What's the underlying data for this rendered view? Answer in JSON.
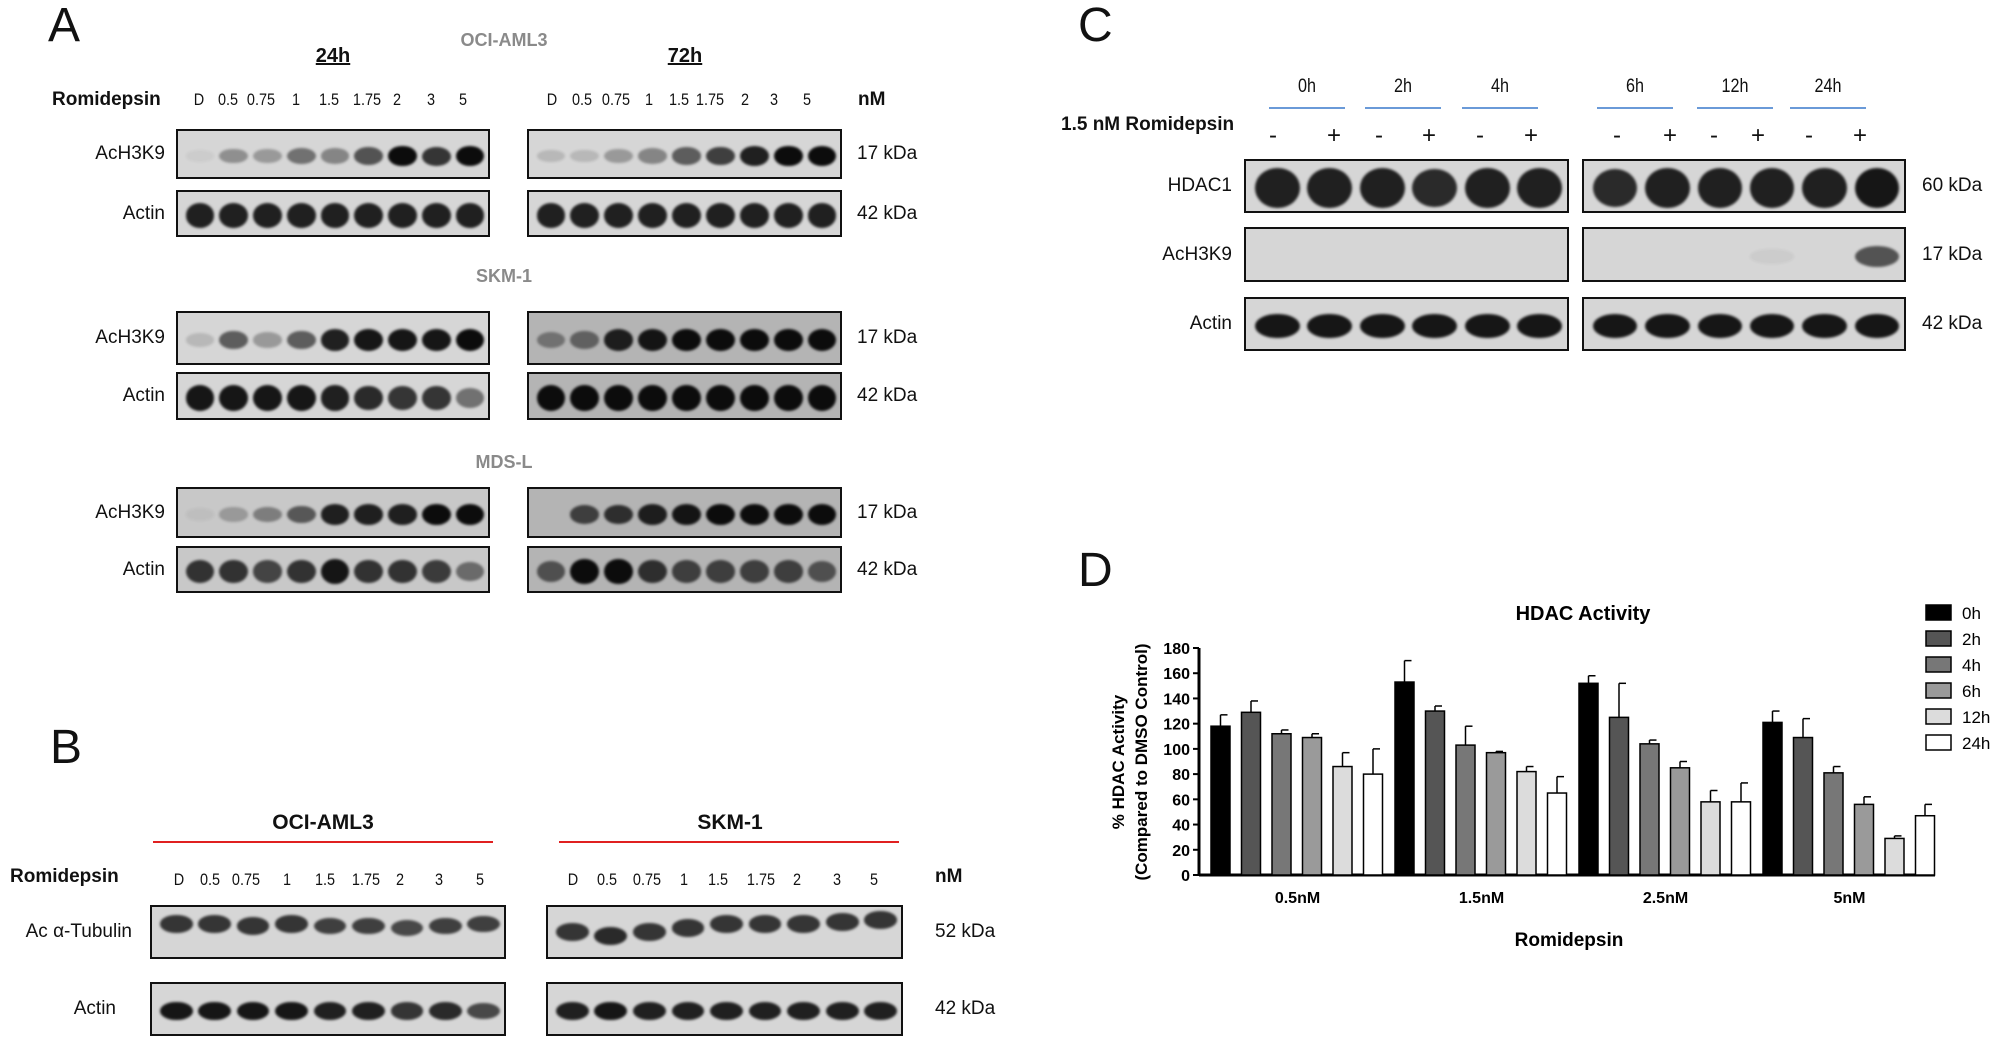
{
  "panel_labels": {
    "a": "A",
    "b": "B",
    "c": "C",
    "d": "D"
  },
  "panel_a": {
    "treatment_label": "Romidepsin",
    "unit": "nM",
    "timepoints": [
      "24h",
      "72h"
    ],
    "doses": [
      "D",
      "0.5",
      "0.75",
      "1",
      "1.5",
      "1.75",
      "2",
      "3",
      "5"
    ],
    "blots": [
      {
        "cell_line": "OCI-AML3",
        "rows": [
          {
            "label": "AcH3K9",
            "mw": "17 kDa",
            "intensity": [
              [
                0.05,
                0.35,
                0.3,
                0.5,
                0.4,
                0.65,
                1,
                0.8,
                1
              ],
              [
                0.15,
                0.15,
                0.3,
                0.4,
                0.6,
                0.75,
                0.9,
                1,
                1
              ]
            ]
          },
          {
            "label": "Actin",
            "mw": "42 kDa",
            "intensity": [
              [
                0.9,
                0.9,
                0.9,
                0.9,
                0.9,
                0.9,
                0.9,
                0.9,
                0.9
              ],
              [
                0.9,
                0.9,
                0.9,
                0.9,
                0.9,
                0.9,
                0.9,
                0.9,
                0.9
              ]
            ]
          }
        ]
      },
      {
        "cell_line": "SKM-1",
        "rows": [
          {
            "label": "AcH3K9",
            "mw": "17 kDa",
            "intensity": [
              [
                0.15,
                0.6,
                0.3,
                0.6,
                0.9,
                0.95,
                0.95,
                0.95,
                1
              ],
              [
                0.4,
                0.5,
                0.9,
                0.95,
                1,
                1,
                1,
                1,
                1
              ]
            ]
          },
          {
            "label": "Actin",
            "mw": "42 kDa",
            "intensity": [
              [
                0.95,
                0.95,
                0.95,
                0.95,
                0.9,
                0.85,
                0.8,
                0.8,
                0.5
              ],
              [
                1,
                1,
                1,
                1,
                1,
                1,
                1,
                1,
                1
              ]
            ]
          }
        ]
      },
      {
        "cell_line": "MDS-L",
        "rows": [
          {
            "label": "AcH3K9",
            "mw": "17 kDa",
            "intensity": [
              [
                0.05,
                0.25,
                0.4,
                0.6,
                0.9,
                0.9,
                0.9,
                1,
                1
              ],
              [
                0,
                0.7,
                0.8,
                0.9,
                0.95,
                1,
                1,
                1,
                1
              ]
            ]
          },
          {
            "label": "Actin",
            "mw": "42 kDa",
            "intensity": [
              [
                0.8,
                0.8,
                0.7,
                0.8,
                0.95,
                0.8,
                0.8,
                0.75,
                0.5
              ],
              [
                0.6,
                1,
                1,
                0.8,
                0.7,
                0.7,
                0.7,
                0.7,
                0.6
              ]
            ]
          }
        ]
      }
    ]
  },
  "panel_b": {
    "treatment_label": "Romidepsin",
    "unit": "nM",
    "cell_lines": [
      "OCI-AML3",
      "SKM-1"
    ],
    "doses": [
      "D",
      "0.5",
      "0.75",
      "1",
      "1.5",
      "1.75",
      "2",
      "3",
      "5"
    ],
    "rows": [
      {
        "label": "Ac α-Tubulin",
        "mw": "52 kDa",
        "intensity": [
          [
            0.8,
            0.8,
            0.8,
            0.8,
            0.75,
            0.75,
            0.7,
            0.75,
            0.75
          ],
          [
            0.8,
            0.85,
            0.8,
            0.8,
            0.8,
            0.8,
            0.8,
            0.8,
            0.8
          ]
        ]
      },
      {
        "label": "Actin",
        "mw": "42 kDa",
        "intensity": [
          [
            0.95,
            0.95,
            0.95,
            0.95,
            0.9,
            0.9,
            0.8,
            0.85,
            0.7
          ],
          [
            0.9,
            0.95,
            0.9,
            0.9,
            0.9,
            0.9,
            0.9,
            0.9,
            0.9
          ]
        ]
      }
    ]
  },
  "panel_c": {
    "treatment_label": "1.5 nM Romidepsin",
    "timepoints": [
      "0h",
      "2h",
      "4h",
      "6h",
      "12h",
      "24h"
    ],
    "signs": [
      "-",
      "+"
    ],
    "rows": [
      {
        "label": "HDAC1",
        "mw": "60 kDa",
        "intensity": [
          0.9,
          0.9,
          0.9,
          0.85,
          0.9,
          0.9,
          0.85,
          0.9,
          0.9,
          0.9,
          0.9,
          0.95
        ]
      },
      {
        "label": "AcH3K9",
        "mw": "17 kDa",
        "intensity": [
          0,
          0,
          0,
          0,
          0,
          0,
          0,
          0,
          0,
          0.05,
          0,
          0.65
        ]
      },
      {
        "label": "Actin",
        "mw": "42 kDa",
        "intensity": [
          0.95,
          0.95,
          0.95,
          0.95,
          0.95,
          0.95,
          0.95,
          0.95,
          0.95,
          0.95,
          0.95,
          0.95
        ]
      }
    ]
  },
  "chart_data": {
    "type": "bar",
    "title": "HDAC Activity",
    "xlabel": "Romidepsin",
    "ylabel": "% HDAC Activity",
    "ylabel2": "(Compared to DMSO Control)",
    "ylim": [
      0,
      180
    ],
    "yticks": [
      0,
      20,
      40,
      60,
      80,
      100,
      120,
      140,
      160,
      180
    ],
    "categories": [
      "0.5nM",
      "1.5nM",
      "2.5nM",
      "5nM"
    ],
    "legend_position": "top-right",
    "series": [
      {
        "name": "0h",
        "color": "#000000",
        "values": [
          118,
          153,
          152,
          121
        ],
        "errors": [
          9,
          17,
          6,
          9
        ]
      },
      {
        "name": "2h",
        "color": "#555555",
        "values": [
          129,
          130,
          125,
          109
        ],
        "errors": [
          9,
          4,
          27,
          15
        ]
      },
      {
        "name": "4h",
        "color": "#777777",
        "values": [
          112,
          103,
          104,
          81
        ],
        "errors": [
          3,
          15,
          3,
          5
        ]
      },
      {
        "name": "6h",
        "color": "#9a9a9a",
        "values": [
          109,
          97,
          85,
          56
        ],
        "errors": [
          3,
          1,
          5,
          6
        ]
      },
      {
        "name": "12h",
        "color": "#dcdcdc",
        "values": [
          86,
          82,
          58,
          29
        ],
        "errors": [
          11,
          4,
          9,
          2
        ]
      },
      {
        "name": "24h",
        "color": "#ffffff",
        "values": [
          80,
          65,
          58,
          47
        ],
        "errors": [
          20,
          13,
          15,
          9
        ]
      }
    ]
  }
}
